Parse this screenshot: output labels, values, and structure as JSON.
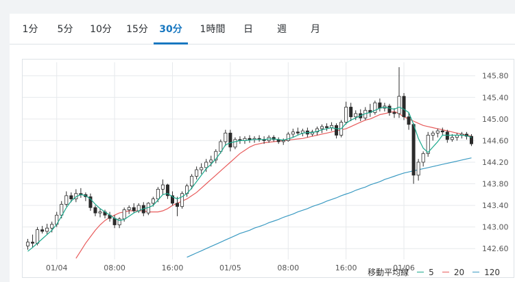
{
  "tabs": [
    {
      "label": "1分",
      "active": false
    },
    {
      "label": "5分",
      "active": false
    },
    {
      "label": "10分",
      "active": false
    },
    {
      "label": "15分",
      "active": false
    },
    {
      "label": "30分",
      "active": true
    },
    {
      "label": "1時間",
      "active": false
    },
    {
      "label": "日",
      "active": false
    },
    {
      "label": "週",
      "active": false
    },
    {
      "label": "月",
      "active": false
    }
  ],
  "colors": {
    "accent": "#1877c0",
    "up_candle": "#ffffff",
    "down_candle": "#2b2b2b",
    "ma5": "#19a88c",
    "ma20": "#e85a5a",
    "ma120": "#3a9ac2",
    "grid": "#e6e9ec"
  },
  "chart_data": {
    "type": "candlestick",
    "y_axis_position": "right",
    "ylim": [
      142.4,
      146.05
    ],
    "y_ticks": [
      "145.80",
      "145.40",
      "145.00",
      "144.60",
      "144.20",
      "143.80",
      "143.40",
      "143.00",
      "142.60"
    ],
    "x_ticks": [
      "01/04",
      "08:00",
      "16:00",
      "01/05",
      "08:00",
      "16:00",
      "01/06"
    ],
    "x_tick_index": [
      6,
      18,
      30,
      42,
      54,
      66,
      78
    ],
    "candles_ohlc": [
      [
        142.65,
        142.78,
        142.58,
        142.72
      ],
      [
        142.72,
        142.86,
        142.62,
        142.7
      ],
      [
        142.7,
        143.0,
        142.66,
        142.95
      ],
      [
        142.95,
        143.02,
        142.88,
        142.92
      ],
      [
        142.92,
        143.06,
        142.86,
        142.98
      ],
      [
        142.98,
        143.1,
        142.9,
        143.05
      ],
      [
        143.05,
        143.28,
        143.0,
        143.22
      ],
      [
        143.22,
        143.48,
        143.16,
        143.42
      ],
      [
        143.42,
        143.66,
        143.38,
        143.58
      ],
      [
        143.58,
        143.64,
        143.46,
        143.52
      ],
      [
        143.52,
        143.7,
        143.46,
        143.62
      ],
      [
        143.62,
        143.72,
        143.54,
        143.6
      ],
      [
        143.6,
        143.64,
        143.48,
        143.56
      ],
      [
        143.56,
        143.62,
        143.3,
        143.36
      ],
      [
        143.36,
        143.4,
        143.2,
        143.26
      ],
      [
        143.26,
        143.34,
        143.18,
        143.28
      ],
      [
        143.28,
        143.32,
        143.16,
        143.22
      ],
      [
        143.22,
        143.28,
        143.1,
        143.16
      ],
      [
        143.16,
        143.22,
        142.98,
        143.04
      ],
      [
        143.04,
        143.18,
        142.98,
        143.15
      ],
      [
        143.15,
        143.36,
        143.1,
        143.32
      ],
      [
        143.32,
        143.4,
        143.24,
        143.36
      ],
      [
        143.36,
        143.44,
        143.26,
        143.3
      ],
      [
        143.3,
        143.44,
        143.26,
        143.4
      ],
      [
        143.4,
        143.46,
        143.2,
        143.26
      ],
      [
        143.26,
        143.46,
        143.22,
        143.44
      ],
      [
        143.44,
        143.56,
        143.38,
        143.52
      ],
      [
        143.52,
        143.74,
        143.46,
        143.7
      ],
      [
        143.7,
        143.88,
        143.6,
        143.78
      ],
      [
        143.78,
        143.8,
        143.52,
        143.58
      ],
      [
        143.58,
        143.66,
        143.4,
        143.44
      ],
      [
        143.44,
        143.56,
        143.2,
        143.38
      ],
      [
        143.38,
        143.66,
        143.34,
        143.62
      ],
      [
        143.62,
        143.8,
        143.56,
        143.76
      ],
      [
        143.76,
        143.98,
        143.7,
        143.94
      ],
      [
        143.94,
        144.12,
        143.88,
        144.06
      ],
      [
        144.06,
        144.18,
        143.98,
        144.1
      ],
      [
        144.1,
        144.26,
        144.02,
        144.2
      ],
      [
        144.2,
        144.32,
        144.12,
        144.24
      ],
      [
        144.24,
        144.44,
        144.18,
        144.4
      ],
      [
        144.4,
        144.62,
        144.36,
        144.58
      ],
      [
        144.58,
        144.8,
        144.5,
        144.74
      ],
      [
        144.74,
        144.8,
        144.4,
        144.48
      ],
      [
        144.48,
        144.66,
        144.44,
        144.62
      ],
      [
        144.62,
        144.68,
        144.54,
        144.6
      ],
      [
        144.6,
        144.68,
        144.54,
        144.64
      ],
      [
        144.64,
        144.7,
        144.56,
        144.62
      ],
      [
        144.62,
        144.68,
        144.56,
        144.64
      ],
      [
        144.64,
        144.7,
        144.58,
        144.62
      ],
      [
        144.62,
        144.68,
        144.54,
        144.6
      ],
      [
        144.6,
        144.7,
        144.56,
        144.66
      ],
      [
        144.66,
        144.7,
        144.58,
        144.62
      ],
      [
        144.62,
        144.66,
        144.54,
        144.58
      ],
      [
        144.58,
        144.64,
        144.52,
        144.6
      ],
      [
        144.6,
        144.76,
        144.58,
        144.72
      ],
      [
        144.72,
        144.82,
        144.66,
        144.76
      ],
      [
        144.76,
        144.84,
        144.7,
        144.74
      ],
      [
        144.74,
        144.82,
        144.68,
        144.78
      ],
      [
        144.78,
        144.84,
        144.66,
        144.72
      ],
      [
        144.72,
        144.8,
        144.68,
        144.76
      ],
      [
        144.76,
        144.86,
        144.7,
        144.82
      ],
      [
        144.82,
        144.9,
        144.74,
        144.86
      ],
      [
        144.86,
        144.92,
        144.78,
        144.84
      ],
      [
        144.84,
        144.94,
        144.78,
        144.88
      ],
      [
        144.88,
        144.92,
        144.64,
        144.7
      ],
      [
        144.7,
        144.98,
        144.66,
        144.94
      ],
      [
        144.94,
        145.32,
        144.9,
        145.22
      ],
      [
        145.22,
        145.3,
        144.96,
        145.04
      ],
      [
        145.04,
        145.16,
        144.98,
        145.1
      ],
      [
        145.1,
        145.18,
        144.96,
        145.02
      ],
      [
        145.02,
        145.22,
        144.98,
        145.16
      ],
      [
        145.16,
        145.28,
        145.04,
        145.12
      ],
      [
        145.12,
        145.34,
        145.08,
        145.3
      ],
      [
        145.3,
        145.38,
        145.14,
        145.2
      ],
      [
        145.2,
        145.3,
        145.14,
        145.24
      ],
      [
        145.24,
        145.28,
        145.06,
        145.12
      ],
      [
        145.12,
        145.2,
        145.02,
        145.1
      ],
      [
        145.1,
        145.96,
        145.02,
        145.42
      ],
      [
        145.42,
        145.48,
        144.98,
        145.04
      ],
      [
        145.04,
        145.12,
        144.8,
        144.9
      ],
      [
        144.9,
        144.92,
        143.8,
        143.96
      ],
      [
        143.96,
        144.26,
        143.86,
        144.2
      ],
      [
        144.2,
        144.4,
        144.12,
        144.36
      ],
      [
        144.36,
        144.76,
        144.3,
        144.7
      ],
      [
        144.7,
        144.78,
        144.6,
        144.74
      ],
      [
        144.74,
        144.82,
        144.66,
        144.78
      ],
      [
        144.78,
        144.84,
        144.7,
        144.76
      ],
      [
        144.76,
        144.8,
        144.56,
        144.62
      ],
      [
        144.62,
        144.72,
        144.58,
        144.66
      ],
      [
        144.66,
        144.74,
        144.6,
        144.7
      ],
      [
        144.7,
        144.76,
        144.64,
        144.72
      ],
      [
        144.72,
        144.76,
        144.62,
        144.68
      ],
      [
        144.68,
        144.72,
        144.5,
        144.54
      ]
    ],
    "ma5": [
      142.55,
      142.62,
      142.7,
      142.78,
      142.86,
      142.94,
      143.05,
      143.2,
      143.36,
      143.48,
      143.56,
      143.6,
      143.58,
      143.52,
      143.42,
      143.34,
      143.28,
      143.22,
      143.16,
      143.12,
      143.14,
      143.2,
      143.26,
      143.3,
      143.34,
      143.36,
      143.4,
      143.5,
      143.6,
      143.62,
      143.56,
      143.52,
      143.56,
      143.62,
      143.72,
      143.84,
      143.96,
      144.08,
      144.16,
      144.26,
      144.38,
      144.52,
      144.56,
      144.58,
      144.6,
      144.6,
      144.61,
      144.62,
      144.62,
      144.62,
      144.63,
      144.63,
      144.62,
      144.61,
      144.63,
      144.66,
      144.7,
      144.74,
      144.75,
      144.75,
      144.77,
      144.8,
      144.82,
      144.84,
      144.82,
      144.82,
      144.92,
      144.98,
      145.02,
      145.06,
      145.1,
      145.12,
      145.16,
      145.2,
      145.22,
      145.2,
      145.18,
      145.22,
      145.18,
      145.12,
      144.9,
      144.64,
      144.46,
      144.38,
      144.48,
      144.58,
      144.7,
      144.7,
      144.7,
      144.7,
      144.7,
      144.69,
      144.66
    ],
    "ma20": [
      null,
      null,
      null,
      null,
      null,
      null,
      null,
      null,
      null,
      null,
      142.42,
      142.56,
      142.7,
      142.82,
      142.94,
      143.04,
      143.12,
      143.18,
      143.22,
      143.26,
      143.28,
      143.3,
      143.3,
      143.3,
      143.3,
      143.28,
      143.28,
      143.28,
      143.3,
      143.34,
      143.4,
      143.44,
      143.48,
      143.52,
      143.58,
      143.64,
      143.72,
      143.8,
      143.88,
      143.96,
      144.04,
      144.12,
      144.2,
      144.28,
      144.36,
      144.42,
      144.48,
      144.52,
      144.54,
      144.56,
      144.57,
      144.58,
      144.59,
      144.6,
      144.61,
      144.62,
      144.63,
      144.64,
      144.66,
      144.68,
      144.7,
      144.72,
      144.74,
      144.76,
      144.78,
      144.8,
      144.82,
      144.86,
      144.9,
      144.94,
      144.98,
      145.0,
      145.04,
      145.08,
      145.1,
      145.12,
      145.14,
      145.1,
      145.04,
      145.0,
      144.96,
      144.92,
      144.88,
      144.86,
      144.84,
      144.82,
      144.8,
      144.78,
      144.76,
      144.74,
      144.72,
      144.7,
      144.68
    ],
    "ma120": [
      null,
      null,
      null,
      null,
      null,
      null,
      null,
      null,
      null,
      null,
      null,
      null,
      null,
      null,
      null,
      null,
      null,
      null,
      null,
      null,
      null,
      null,
      null,
      null,
      null,
      null,
      null,
      null,
      null,
      null,
      null,
      null,
      null,
      142.44,
      142.48,
      142.52,
      142.56,
      142.6,
      142.64,
      142.68,
      142.72,
      142.76,
      142.8,
      142.84,
      142.88,
      142.91,
      142.94,
      142.98,
      143.01,
      143.04,
      143.08,
      143.11,
      143.14,
      143.18,
      143.21,
      143.24,
      143.28,
      143.31,
      143.34,
      143.38,
      143.41,
      143.44,
      143.48,
      143.51,
      143.54,
      143.58,
      143.61,
      143.64,
      143.68,
      143.71,
      143.74,
      143.78,
      143.81,
      143.84,
      143.88,
      143.91,
      143.94,
      143.97,
      144.0,
      144.02,
      144.04,
      144.06,
      144.08,
      144.1,
      144.12,
      144.14,
      144.16,
      144.18,
      144.2,
      144.22,
      144.24,
      144.26,
      144.28
    ],
    "legend": {
      "title": "移動平均線",
      "items": [
        {
          "name": "5",
          "color": "#19a88c"
        },
        {
          "name": "20",
          "color": "#e85a5a"
        },
        {
          "name": "120",
          "color": "#3a9ac2"
        }
      ]
    }
  }
}
